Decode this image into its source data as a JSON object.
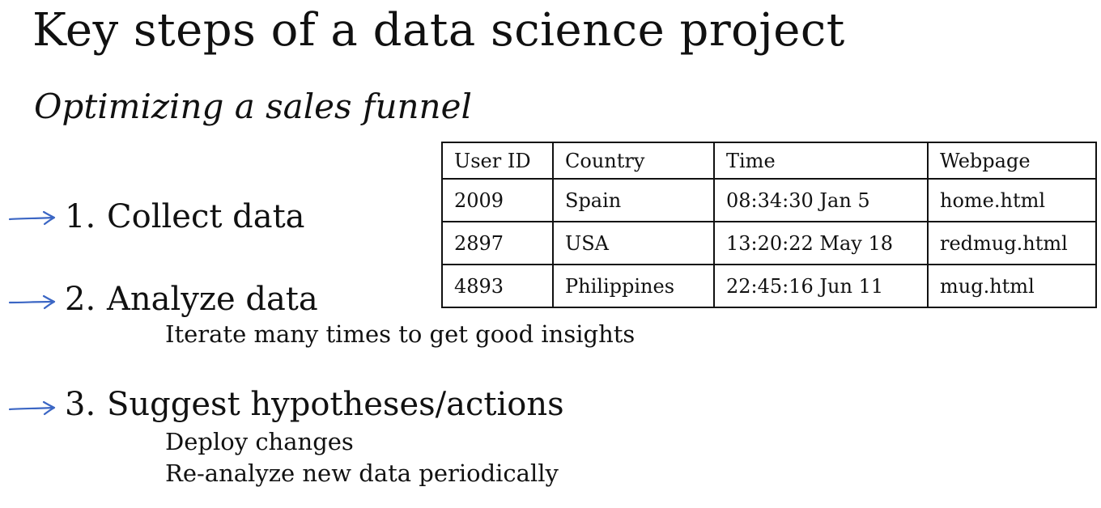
{
  "slide": {
    "title": "Key steps of a data science project",
    "subtitle": "Optimizing a sales funnel"
  },
  "steps": [
    {
      "number": "1.",
      "label": "Collect data",
      "subitems": []
    },
    {
      "number": "2.",
      "label": "Analyze data",
      "subitems": [
        "Iterate many times to get good insights"
      ]
    },
    {
      "number": "3.",
      "label": "Suggest hypotheses/actions",
      "subitems": [
        "Deploy changes",
        "Re-analyze new data periodically"
      ]
    }
  ],
  "table": {
    "headers": [
      "User ID",
      "Country",
      "Time",
      "Webpage"
    ],
    "rows": [
      [
        "2009",
        "Spain",
        "08:34:30 Jan 5",
        "home.html"
      ],
      [
        "2897",
        "USA",
        "13:20:22 May 18",
        "redmug.html"
      ],
      [
        "4893",
        "Philippines",
        "22:45:16 Jun 11",
        "mug.html"
      ]
    ]
  },
  "colors": {
    "arrow": "#3b66c4",
    "text": "#111111",
    "background": "#ffffff"
  },
  "icons": {
    "annotation": "hand-drawn-arrow-icon"
  }
}
